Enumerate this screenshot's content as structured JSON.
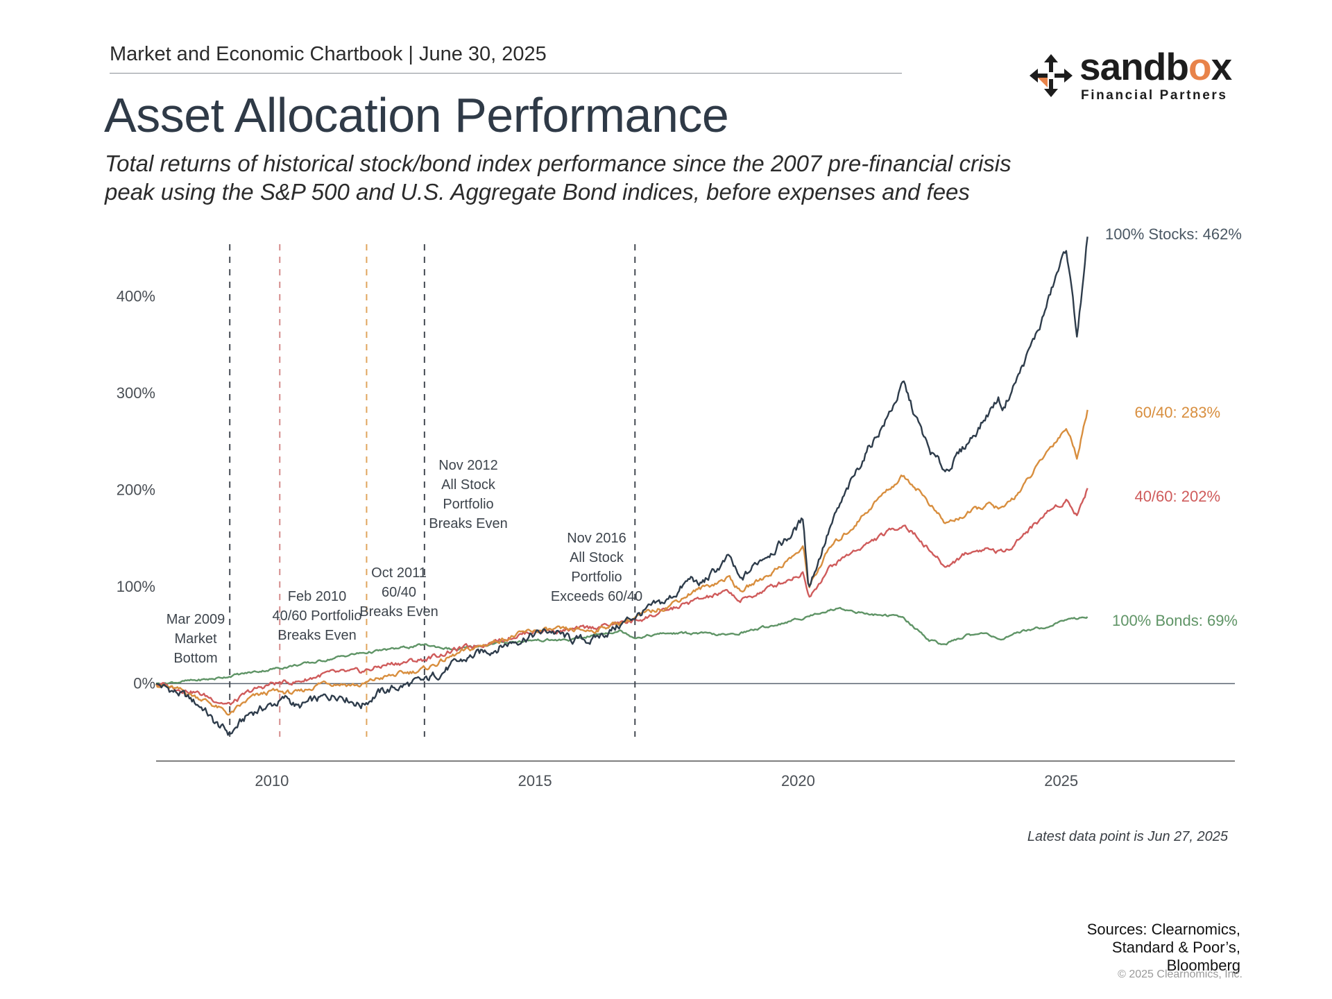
{
  "header": {
    "chartbook": "Market and Economic Chartbook | June 30, 2025",
    "title": "Asset Allocation Performance",
    "subtitle_lines": [
      "Total returns of historical stock/bond index performance since the 2007 pre-financial crisis",
      "peak using the S&P 500 and U.S. Aggregate Bond indices, before expenses and fees"
    ]
  },
  "logo": {
    "word_prefix": "sandb",
    "word_accent": "o",
    "word_suffix": "x",
    "sub": "Financial Partners",
    "mark_icon": "four-arrows-icon",
    "accent_color": "#e8834a"
  },
  "chart_data": {
    "type": "line",
    "title": "",
    "xlabel": "",
    "ylabel": "",
    "x_ticks": [
      "2010",
      "2015",
      "2020",
      "2025"
    ],
    "y_ticks": [
      "0%",
      "100%",
      "200%",
      "300%",
      "400%"
    ],
    "ylim": [
      -80,
      470
    ],
    "xlim": [
      2007.8,
      2028.3
    ],
    "grid": false,
    "series": [
      {
        "name": "100% Stocks: 462%",
        "color": "#2e3c4b",
        "points": [
          [
            2007.8,
            0
          ],
          [
            2008.3,
            -12
          ],
          [
            2008.7,
            -25
          ],
          [
            2008.9,
            -40
          ],
          [
            2009.2,
            -52
          ],
          [
            2009.6,
            -30
          ],
          [
            2010.0,
            -22
          ],
          [
            2010.3,
            -15
          ],
          [
            2010.5,
            -25
          ],
          [
            2010.8,
            -18
          ],
          [
            2011.3,
            -10
          ],
          [
            2011.7,
            -22
          ],
          [
            2012.0,
            -10
          ],
          [
            2012.5,
            -2
          ],
          [
            2012.9,
            2
          ],
          [
            2013.3,
            15
          ],
          [
            2013.8,
            28
          ],
          [
            2014.3,
            38
          ],
          [
            2014.8,
            48
          ],
          [
            2015.3,
            55
          ],
          [
            2015.7,
            45
          ],
          [
            2016.1,
            45
          ],
          [
            2016.6,
            60
          ],
          [
            2016.9,
            70
          ],
          [
            2017.5,
            85
          ],
          [
            2018.0,
            110
          ],
          [
            2018.1,
            100
          ],
          [
            2018.7,
            130
          ],
          [
            2018.9,
            105
          ],
          [
            2019.3,
            130
          ],
          [
            2019.8,
            150
          ],
          [
            2020.1,
            170
          ],
          [
            2020.2,
            100
          ],
          [
            2020.6,
            160
          ],
          [
            2020.9,
            195
          ],
          [
            2021.3,
            240
          ],
          [
            2021.7,
            275
          ],
          [
            2022.0,
            310
          ],
          [
            2022.2,
            280
          ],
          [
            2022.5,
            240
          ],
          [
            2022.8,
            220
          ],
          [
            2023.1,
            240
          ],
          [
            2023.5,
            270
          ],
          [
            2023.8,
            295
          ],
          [
            2023.9,
            285
          ],
          [
            2024.2,
            320
          ],
          [
            2024.6,
            370
          ],
          [
            2024.9,
            420
          ],
          [
            2025.1,
            450
          ],
          [
            2025.3,
            360
          ],
          [
            2025.45,
            430
          ],
          [
            2025.5,
            462
          ]
        ]
      },
      {
        "name": "60/40: 283%",
        "color": "#d88e3e",
        "points": [
          [
            2007.8,
            0
          ],
          [
            2008.3,
            -8
          ],
          [
            2008.7,
            -16
          ],
          [
            2009.2,
            -32
          ],
          [
            2009.6,
            -15
          ],
          [
            2010.0,
            -8
          ],
          [
            2010.5,
            -10
          ],
          [
            2011.0,
            2
          ],
          [
            2011.7,
            -2
          ],
          [
            2012.0,
            5
          ],
          [
            2012.9,
            15
          ],
          [
            2013.5,
            30
          ],
          [
            2014.3,
            45
          ],
          [
            2015.0,
            55
          ],
          [
            2015.7,
            55
          ],
          [
            2016.1,
            55
          ],
          [
            2016.9,
            68
          ],
          [
            2017.5,
            80
          ],
          [
            2018.0,
            95
          ],
          [
            2018.7,
            110
          ],
          [
            2018.9,
            95
          ],
          [
            2019.5,
            115
          ],
          [
            2020.1,
            140
          ],
          [
            2020.2,
            100
          ],
          [
            2020.6,
            140
          ],
          [
            2021.0,
            160
          ],
          [
            2021.5,
            190
          ],
          [
            2022.0,
            215
          ],
          [
            2022.3,
            200
          ],
          [
            2022.8,
            165
          ],
          [
            2023.2,
            175
          ],
          [
            2023.6,
            185
          ],
          [
            2023.9,
            180
          ],
          [
            2024.3,
            205
          ],
          [
            2024.8,
            245
          ],
          [
            2025.1,
            265
          ],
          [
            2025.3,
            235
          ],
          [
            2025.5,
            283
          ]
        ]
      },
      {
        "name": "40/60: 202%",
        "color": "#cf5b5b",
        "points": [
          [
            2007.8,
            0
          ],
          [
            2008.5,
            -8
          ],
          [
            2009.2,
            -22
          ],
          [
            2009.6,
            -8
          ],
          [
            2010.0,
            0
          ],
          [
            2010.5,
            2
          ],
          [
            2011.0,
            10
          ],
          [
            2011.7,
            12
          ],
          [
            2012.2,
            20
          ],
          [
            2012.9,
            25
          ],
          [
            2013.5,
            35
          ],
          [
            2014.3,
            45
          ],
          [
            2015.0,
            55
          ],
          [
            2015.7,
            55
          ],
          [
            2016.1,
            58
          ],
          [
            2016.9,
            65
          ],
          [
            2017.5,
            75
          ],
          [
            2018.0,
            85
          ],
          [
            2018.7,
            95
          ],
          [
            2018.9,
            85
          ],
          [
            2019.5,
            100
          ],
          [
            2020.1,
            115
          ],
          [
            2020.2,
            90
          ],
          [
            2020.6,
            120
          ],
          [
            2021.0,
            135
          ],
          [
            2021.5,
            150
          ],
          [
            2022.0,
            165
          ],
          [
            2022.3,
            150
          ],
          [
            2022.8,
            120
          ],
          [
            2023.2,
            135
          ],
          [
            2023.6,
            140
          ],
          [
            2023.9,
            135
          ],
          [
            2024.3,
            155
          ],
          [
            2024.8,
            180
          ],
          [
            2025.1,
            190
          ],
          [
            2025.3,
            175
          ],
          [
            2025.5,
            202
          ]
        ]
      },
      {
        "name": "100% Bonds: 69%",
        "color": "#5f9466",
        "points": [
          [
            2007.8,
            0
          ],
          [
            2008.5,
            3
          ],
          [
            2008.9,
            5
          ],
          [
            2009.2,
            8
          ],
          [
            2010.0,
            15
          ],
          [
            2010.8,
            22
          ],
          [
            2011.5,
            30
          ],
          [
            2012.2,
            35
          ],
          [
            2012.9,
            40
          ],
          [
            2013.5,
            35
          ],
          [
            2014.3,
            42
          ],
          [
            2015.0,
            45
          ],
          [
            2015.7,
            45
          ],
          [
            2016.1,
            50
          ],
          [
            2016.6,
            55
          ],
          [
            2016.9,
            48
          ],
          [
            2017.5,
            52
          ],
          [
            2018.0,
            52
          ],
          [
            2018.7,
            50
          ],
          [
            2019.5,
            60
          ],
          [
            2020.1,
            68
          ],
          [
            2020.5,
            75
          ],
          [
            2020.8,
            78
          ],
          [
            2021.3,
            72
          ],
          [
            2021.8,
            70
          ],
          [
            2022.0,
            68
          ],
          [
            2022.5,
            45
          ],
          [
            2022.8,
            40
          ],
          [
            2023.2,
            50
          ],
          [
            2023.6,
            52
          ],
          [
            2023.9,
            45
          ],
          [
            2024.3,
            55
          ],
          [
            2024.8,
            60
          ],
          [
            2025.0,
            65
          ],
          [
            2025.5,
            69
          ]
        ]
      }
    ],
    "end_labels": [
      {
        "text": "100% Stocks: 462%",
        "value": 462,
        "color": "#4a5763"
      },
      {
        "text": "60/40: 283%",
        "value": 283,
        "color": "#d88e3e"
      },
      {
        "text": "40/60: 202%",
        "value": 202,
        "color": "#cf5b5b"
      },
      {
        "text": "100% Bonds: 69%",
        "value": 69,
        "color": "#5f9466"
      }
    ],
    "events": [
      {
        "x": 2009.2,
        "color": "#444a52",
        "lines": [
          "Mar 2009",
          "Market",
          "Bottom"
        ],
        "label_y": 70,
        "anchor": "end"
      },
      {
        "x": 2010.15,
        "color": "#d48a8a",
        "lines": [
          "Feb 2010",
          "40/60 Portfolio",
          "Breaks Even"
        ],
        "label_y": 95,
        "anchor": "middle"
      },
      {
        "x": 2011.8,
        "color": "#e0a55e",
        "lines": [
          "Oct 2011",
          "60/40",
          "Breaks Even"
        ],
        "label_y": 120,
        "anchor": "middle"
      },
      {
        "x": 2012.9,
        "color": "#444a52",
        "lines": [
          "Nov 2012",
          "All Stock",
          "Portfolio",
          "Breaks Even"
        ],
        "label_y": 230,
        "anchor": "middle"
      },
      {
        "x": 2016.9,
        "color": "#444a52",
        "lines": [
          "Nov 2016",
          "All Stock",
          "Portfolio",
          "Exceeds 60/40"
        ],
        "label_y": 155,
        "anchor": "end"
      }
    ]
  },
  "footer": {
    "latest": "Latest data point is Jun 27, 2025",
    "sources": [
      "Sources: Clearnomics,",
      "Standard & Poor’s,",
      "Bloomberg"
    ],
    "copyright": "© 2025 Clearnomics, Inc."
  }
}
